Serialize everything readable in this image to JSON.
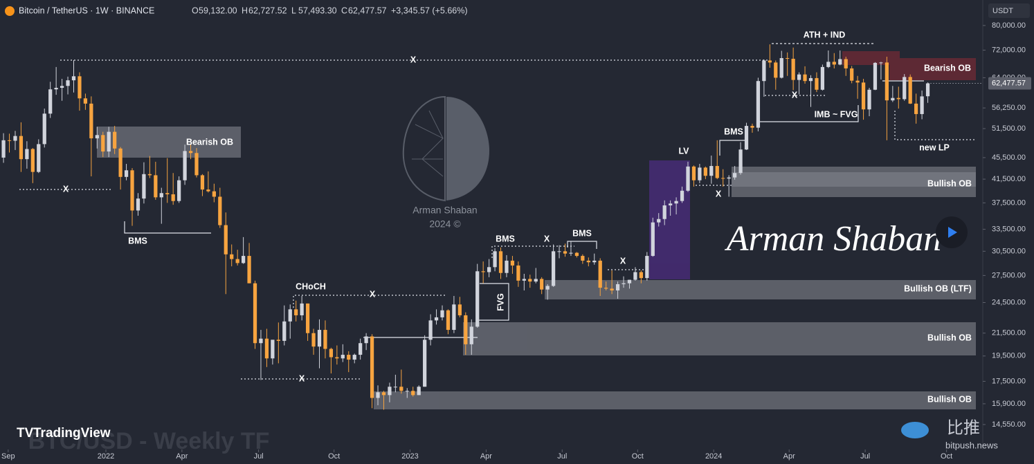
{
  "chart_data": {
    "type": "candlestick",
    "title": "Bitcoin / TetherUS · 1W · BINANCE",
    "ohlc_legend": [
      {
        "key": "O",
        "value": "59,132.00"
      },
      {
        "key": "H",
        "value": "62,727.52"
      },
      {
        "key": "L",
        "value": "57,493.30"
      },
      {
        "key": "C",
        "value": "62,477.57"
      }
    ],
    "change": "+3,345.57 (+5.66%)",
    "currency": "USDT",
    "last_price_label": "62,477.57",
    "up_color": "#d1d4dc",
    "down_color": "#f7a440",
    "log_scale": true,
    "xlim": [
      -0.6,
      167.4
    ],
    "ylim": [
      13080,
      89200
    ],
    "xticks": [
      {
        "value": 0.8,
        "label": "Sep"
      },
      {
        "value": 17.5,
        "label": "2022"
      },
      {
        "value": 30.5,
        "label": "Apr"
      },
      {
        "value": 43.6,
        "label": "Jul"
      },
      {
        "value": 56.5,
        "label": "Oct"
      },
      {
        "value": 69.5,
        "label": "2023"
      },
      {
        "value": 82.5,
        "label": "Apr"
      },
      {
        "value": 95.5,
        "label": "Jul"
      },
      {
        "value": 108.4,
        "label": "Oct"
      },
      {
        "value": 121.4,
        "label": "2024"
      },
      {
        "value": 134.3,
        "label": "Apr"
      },
      {
        "value": 147.3,
        "label": "Jul"
      },
      {
        "value": 161.2,
        "label": "Oct"
      }
    ],
    "yticks": [
      {
        "value": 80000,
        "label": "80,000.00"
      },
      {
        "value": 72000,
        "label": "72,000.00"
      },
      {
        "value": 64000,
        "label": "64,000.00"
      },
      {
        "value": 56250,
        "label": "56,250.00"
      },
      {
        "value": 51500,
        "label": "51,500.00"
      },
      {
        "value": 45500,
        "label": "45,500.00"
      },
      {
        "value": 41500,
        "label": "41,500.00"
      },
      {
        "value": 37500,
        "label": "37,500.00"
      },
      {
        "value": 33500,
        "label": "33,500.00"
      },
      {
        "value": 30500,
        "label": "30,500.00"
      },
      {
        "value": 27500,
        "label": "27,500.00"
      },
      {
        "value": 24500,
        "label": "24,500.00"
      },
      {
        "value": 21500,
        "label": "21,500.00"
      },
      {
        "value": 19500,
        "label": "19,500.00"
      },
      {
        "value": 17500,
        "label": "17,500.00"
      },
      {
        "value": 15900,
        "label": "15,900.00"
      },
      {
        "value": 14550,
        "label": "14,550.00"
      }
    ],
    "candles": [
      [
        45500,
        50500,
        44500,
        49000
      ],
      [
        49000,
        50400,
        46500,
        48900
      ],
      [
        48900,
        51000,
        47000,
        49900
      ],
      [
        49900,
        52900,
        42800,
        45200
      ],
      [
        45200,
        48800,
        43400,
        47200
      ],
      [
        47200,
        47400,
        40800,
        42800
      ],
      [
        42800,
        49200,
        42600,
        48200
      ],
      [
        48200,
        56100,
        47500,
        54900
      ],
      [
        54900,
        62900,
        53900,
        60900
      ],
      [
        60900,
        67000,
        59500,
        61300
      ],
      [
        61300,
        63700,
        58000,
        61800
      ],
      [
        61800,
        64300,
        59600,
        63300
      ],
      [
        63300,
        69000,
        60100,
        64400
      ],
      [
        64400,
        65500,
        55600,
        58600
      ],
      [
        58600,
        59800,
        55800,
        57300
      ],
      [
        57300,
        59100,
        42000,
        49400
      ],
      [
        49400,
        51900,
        47300,
        50100
      ],
      [
        50100,
        50800,
        45600,
        46700
      ],
      [
        46700,
        51900,
        45600,
        50800
      ],
      [
        50800,
        52100,
        46200,
        47300
      ],
      [
        47300,
        47600,
        39700,
        41900
      ],
      [
        41900,
        44300,
        41300,
        43100
      ],
      [
        43100,
        43500,
        34000,
        36300
      ],
      [
        36300,
        39100,
        35500,
        38200
      ],
      [
        38200,
        44600,
        37400,
        42400
      ],
      [
        42400,
        45800,
        41700,
        42200
      ],
      [
        42200,
        44700,
        38000,
        38400
      ],
      [
        38400,
        40000,
        34300,
        39100
      ],
      [
        39100,
        45400,
        37500,
        38900
      ],
      [
        38900,
        42600,
        37200,
        37800
      ],
      [
        37800,
        42000,
        37500,
        41300
      ],
      [
        41300,
        48100,
        40500,
        46800
      ],
      [
        46800,
        48200,
        45200,
        46400
      ],
      [
        46400,
        47400,
        41800,
        42200
      ],
      [
        42200,
        42400,
        38600,
        39700
      ],
      [
        39700,
        42900,
        39200,
        39400
      ],
      [
        39400,
        40700,
        37600,
        38500
      ],
      [
        38500,
        40000,
        33700,
        34100
      ],
      [
        34100,
        36000,
        25400,
        30100
      ],
      [
        30100,
        31400,
        28600,
        29500
      ],
      [
        29500,
        30700,
        28700,
        29000
      ],
      [
        29000,
        32400,
        28900,
        29900
      ],
      [
        29900,
        31600,
        26600,
        26600
      ],
      [
        26600,
        26900,
        20100,
        20600
      ],
      [
        20600,
        21800,
        17600,
        21000
      ],
      [
        21000,
        21900,
        18600,
        19300
      ],
      [
        19300,
        20700,
        18800,
        20900
      ],
      [
        20900,
        22500,
        18900,
        20800
      ],
      [
        20800,
        24200,
        20400,
        22600
      ],
      [
        22600,
        24300,
        21000,
        23800
      ],
      [
        23800,
        24700,
        22600,
        23200
      ],
      [
        23200,
        25200,
        22700,
        24400
      ],
      [
        24400,
        24400,
        20800,
        21500
      ],
      [
        21500,
        21900,
        19600,
        20300
      ],
      [
        20300,
        22800,
        18500,
        21800
      ],
      [
        21800,
        22700,
        19300,
        20100
      ],
      [
        20100,
        20200,
        18100,
        19400
      ],
      [
        19400,
        20400,
        18800,
        19300
      ],
      [
        19300,
        20500,
        19000,
        19600
      ],
      [
        19600,
        19900,
        18200,
        19200
      ],
      [
        19200,
        19700,
        18900,
        19600
      ],
      [
        19600,
        21000,
        19200,
        20600
      ],
      [
        20600,
        21500,
        20000,
        21200
      ],
      [
        21200,
        21400,
        15600,
        16300
      ],
      [
        16300,
        17200,
        15800,
        16700
      ],
      [
        16700,
        16800,
        15500,
        16500
      ],
      [
        16500,
        17400,
        16000,
        17100
      ],
      [
        17100,
        18000,
        16700,
        17100
      ],
      [
        17100,
        18400,
        16600,
        16800
      ],
      [
        16800,
        17000,
        16300,
        16800
      ],
      [
        16800,
        17100,
        16400,
        16500
      ],
      [
        16500,
        17200,
        16500,
        17100
      ],
      [
        17100,
        21300,
        17100,
        20900
      ],
      [
        20900,
        23300,
        20400,
        22700
      ],
      [
        22700,
        23800,
        22300,
        23000
      ],
      [
        23000,
        24200,
        22700,
        23700
      ],
      [
        23700,
        23800,
        21400,
        21800
      ],
      [
        21800,
        25200,
        21500,
        24300
      ],
      [
        24300,
        25100,
        23000,
        23200
      ],
      [
        23200,
        23500,
        19600,
        20500
      ],
      [
        20500,
        22800,
        19600,
        22100
      ],
      [
        22100,
        28900,
        22000,
        28000
      ],
      [
        28000,
        29200,
        26600,
        27900
      ],
      [
        27900,
        29500,
        27300,
        28500
      ],
      [
        28500,
        30900,
        28000,
        30500
      ],
      [
        30500,
        31000,
        27100,
        27800
      ],
      [
        27800,
        30000,
        27300,
        29300
      ],
      [
        29300,
        29900,
        27700,
        28700
      ],
      [
        28700,
        29200,
        26200,
        26900
      ],
      [
        26900,
        27700,
        25800,
        27100
      ],
      [
        27100,
        27600,
        26100,
        26800
      ],
      [
        26800,
        28400,
        26600,
        27100
      ],
      [
        27100,
        27300,
        25400,
        25900
      ],
      [
        25900,
        26500,
        24800,
        26300
      ],
      [
        26300,
        31400,
        26200,
        30500
      ],
      [
        30500,
        31300,
        29600,
        30500
      ],
      [
        30500,
        31500,
        29800,
        30200
      ],
      [
        30200,
        31800,
        29900,
        30300
      ],
      [
        30300,
        30400,
        29700,
        29900
      ],
      [
        29900,
        30100,
        28900,
        29300
      ],
      [
        29300,
        29700,
        28600,
        29100
      ],
      [
        29100,
        30200,
        28800,
        29300
      ],
      [
        29300,
        29600,
        25200,
        26100
      ],
      [
        26100,
        26800,
        25800,
        26000
      ],
      [
        26000,
        28100,
        25400,
        25800
      ],
      [
        25800,
        26800,
        24900,
        26500
      ],
      [
        26500,
        27400,
        26100,
        26600
      ],
      [
        26600,
        27000,
        26000,
        27000
      ],
      [
        27000,
        28500,
        26900,
        27900
      ],
      [
        27900,
        28100,
        26600,
        27200
      ],
      [
        27200,
        30400,
        26900,
        29900
      ],
      [
        29900,
        35200,
        29800,
        34500
      ],
      [
        34500,
        35900,
        33900,
        35000
      ],
      [
        35000,
        37900,
        34100,
        37100
      ],
      [
        37100,
        37900,
        35500,
        37400
      ],
      [
        37400,
        38400,
        35700,
        37800
      ],
      [
        37800,
        40200,
        37500,
        39500
      ],
      [
        39500,
        44700,
        39300,
        43800
      ],
      [
        43800,
        44000,
        40200,
        41300
      ],
      [
        41300,
        44300,
        40800,
        43600
      ],
      [
        43600,
        43800,
        41500,
        42100
      ],
      [
        42100,
        45900,
        40700,
        43900
      ],
      [
        43900,
        49000,
        41500,
        41700
      ],
      [
        41700,
        43300,
        40200,
        41600
      ],
      [
        41600,
        42200,
        38500,
        41800
      ],
      [
        41800,
        43900,
        41400,
        42600
      ],
      [
        42600,
        48600,
        42300,
        47100
      ],
      [
        47100,
        52800,
        47000,
        52100
      ],
      [
        52100,
        52600,
        50600,
        51700
      ],
      [
        51700,
        64000,
        50900,
        63100
      ],
      [
        63100,
        69200,
        59000,
        68900
      ],
      [
        68900,
        73800,
        66800,
        68300
      ],
      [
        68300,
        68900,
        60800,
        64000
      ],
      [
        64000,
        71800,
        63800,
        69600
      ],
      [
        69600,
        71300,
        64500,
        69400
      ],
      [
        69400,
        72800,
        60700,
        63400
      ],
      [
        63400,
        65500,
        59600,
        64900
      ],
      [
        64900,
        67200,
        62400,
        63100
      ],
      [
        63100,
        64700,
        56500,
        63900
      ],
      [
        63900,
        65500,
        60200,
        60800
      ],
      [
        60800,
        67700,
        60600,
        67000
      ],
      [
        67000,
        71900,
        66700,
        68500
      ],
      [
        68500,
        71100,
        66600,
        67700
      ],
      [
        67700,
        71900,
        67500,
        69300
      ],
      [
        69300,
        70000,
        64500,
        66600
      ],
      [
        66600,
        67300,
        62500,
        63200
      ],
      [
        63200,
        64500,
        58500,
        62700
      ],
      [
        62700,
        63700,
        53500,
        55900
      ],
      [
        55900,
        61300,
        54300,
        60800
      ],
      [
        60800,
        68400,
        60700,
        68200
      ],
      [
        68200,
        68500,
        63500,
        68300
      ],
      [
        68300,
        70000,
        49000,
        58100
      ],
      [
        58100,
        61800,
        57700,
        58700
      ],
      [
        58700,
        61600,
        56100,
        58400
      ],
      [
        58400,
        65000,
        58000,
        64200
      ],
      [
        64200,
        64900,
        57200,
        57300
      ],
      [
        57300,
        59800,
        52600,
        54800
      ],
      [
        54800,
        60600,
        53600,
        59100
      ],
      [
        59132,
        62727.52,
        57493.3,
        62477.57
      ]
    ],
    "annotations": [
      "Bearish OB",
      "X",
      "BMS",
      "X",
      "CHoCH",
      "X",
      "X",
      "BMS",
      "X",
      "BMS",
      "FVG",
      "X",
      "LV",
      "BMS",
      "X",
      "ATH + IND",
      "X",
      "IMB ~ FVG",
      "Bearish OB",
      "new LP",
      "Bullish OB",
      "Bullish OB (LTF)",
      "Bullish OB",
      "Bullish OB"
    ]
  },
  "watermark": {
    "author": "Arman Shaban",
    "year": "2024 ©",
    "signature": "Arman Shaban",
    "chart_label": "BTC/USD - Weekly TF",
    "platform": "TradingView",
    "source_cn": "比推",
    "source_url": "bitpush.news"
  }
}
